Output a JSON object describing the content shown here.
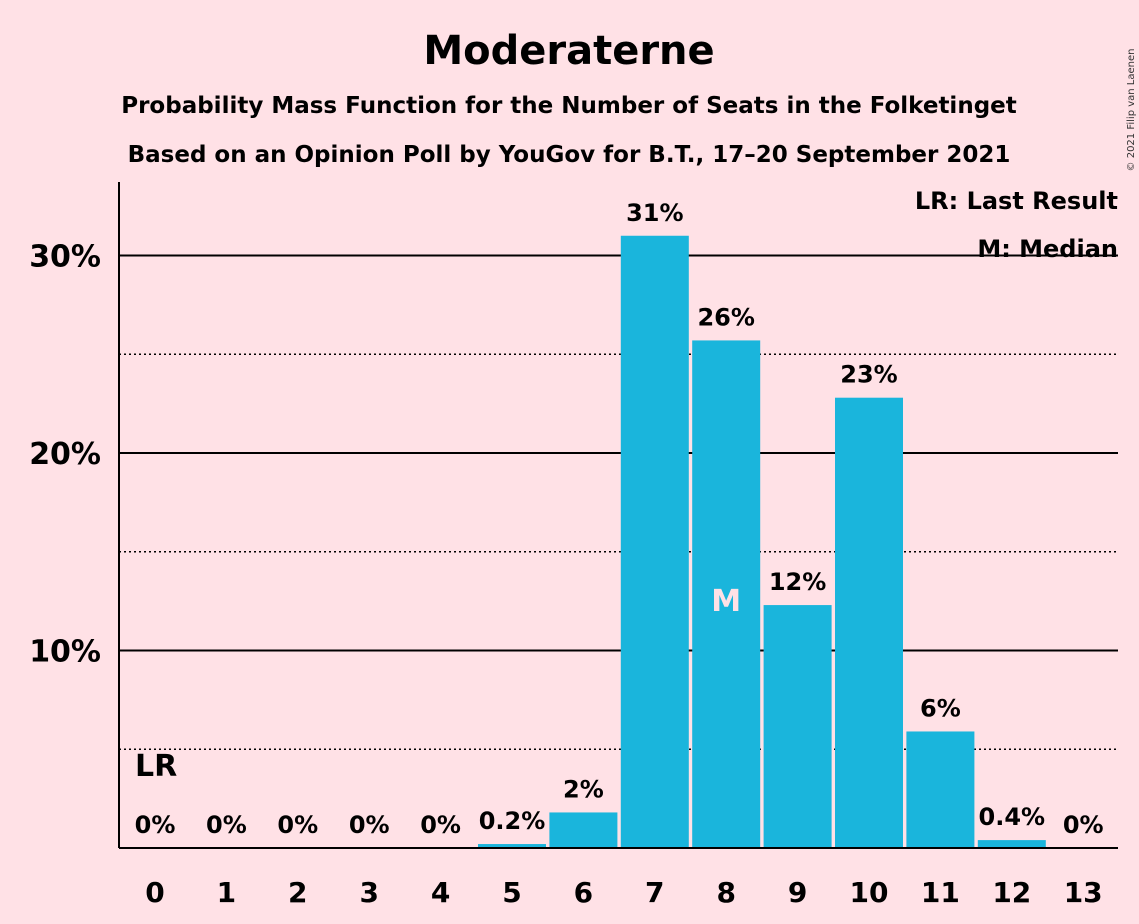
{
  "chart_data": {
    "type": "bar",
    "title": "Moderaterne",
    "subtitle_1": "Probability Mass Function for the Number of Seats in the Folketinget",
    "subtitle_2": "Based on an Opinion Poll by YouGov for B.T., 17–20 September 2021",
    "categories": [
      "0",
      "1",
      "2",
      "3",
      "4",
      "5",
      "6",
      "7",
      "8",
      "9",
      "10",
      "11",
      "12",
      "13"
    ],
    "values": [
      0,
      0,
      0,
      0,
      0,
      0.2,
      1.8,
      31.0,
      25.7,
      12.3,
      22.8,
      5.9,
      0.4,
      0
    ],
    "data_labels": [
      "0%",
      "0%",
      "0%",
      "0%",
      "0%",
      "0.2%",
      "2%",
      "31%",
      "26%",
      "12%",
      "23%",
      "6%",
      "0.4%",
      "0%"
    ],
    "ylim": [
      0,
      33.5
    ],
    "yticks": [
      10,
      20,
      30
    ],
    "ytick_labels": [
      "10%",
      "20%",
      "30%"
    ],
    "minor_gridlines": [
      5,
      15,
      25
    ],
    "last_result_seat": 0,
    "last_result_marker": "LR",
    "median_seat": 8,
    "median_marker": "M",
    "legend": [
      "LR: Last Result",
      "M: Median"
    ],
    "legend_position": "top-right",
    "bar_color": "#1AB5DC",
    "background_color": "#FFE1E6",
    "copyright": "© 2021 Filip van Laenen"
  }
}
